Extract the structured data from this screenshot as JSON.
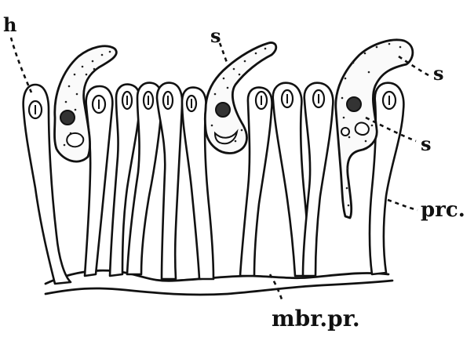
{
  "labels": {
    "h": "h",
    "s_top": "s",
    "s_right_upper": "s",
    "s_right_lower": "s",
    "prc": "prc.",
    "mbr_pr": "mbr.pr."
  },
  "colors": {
    "ink": "#111111",
    "paper": "#ffffff"
  }
}
